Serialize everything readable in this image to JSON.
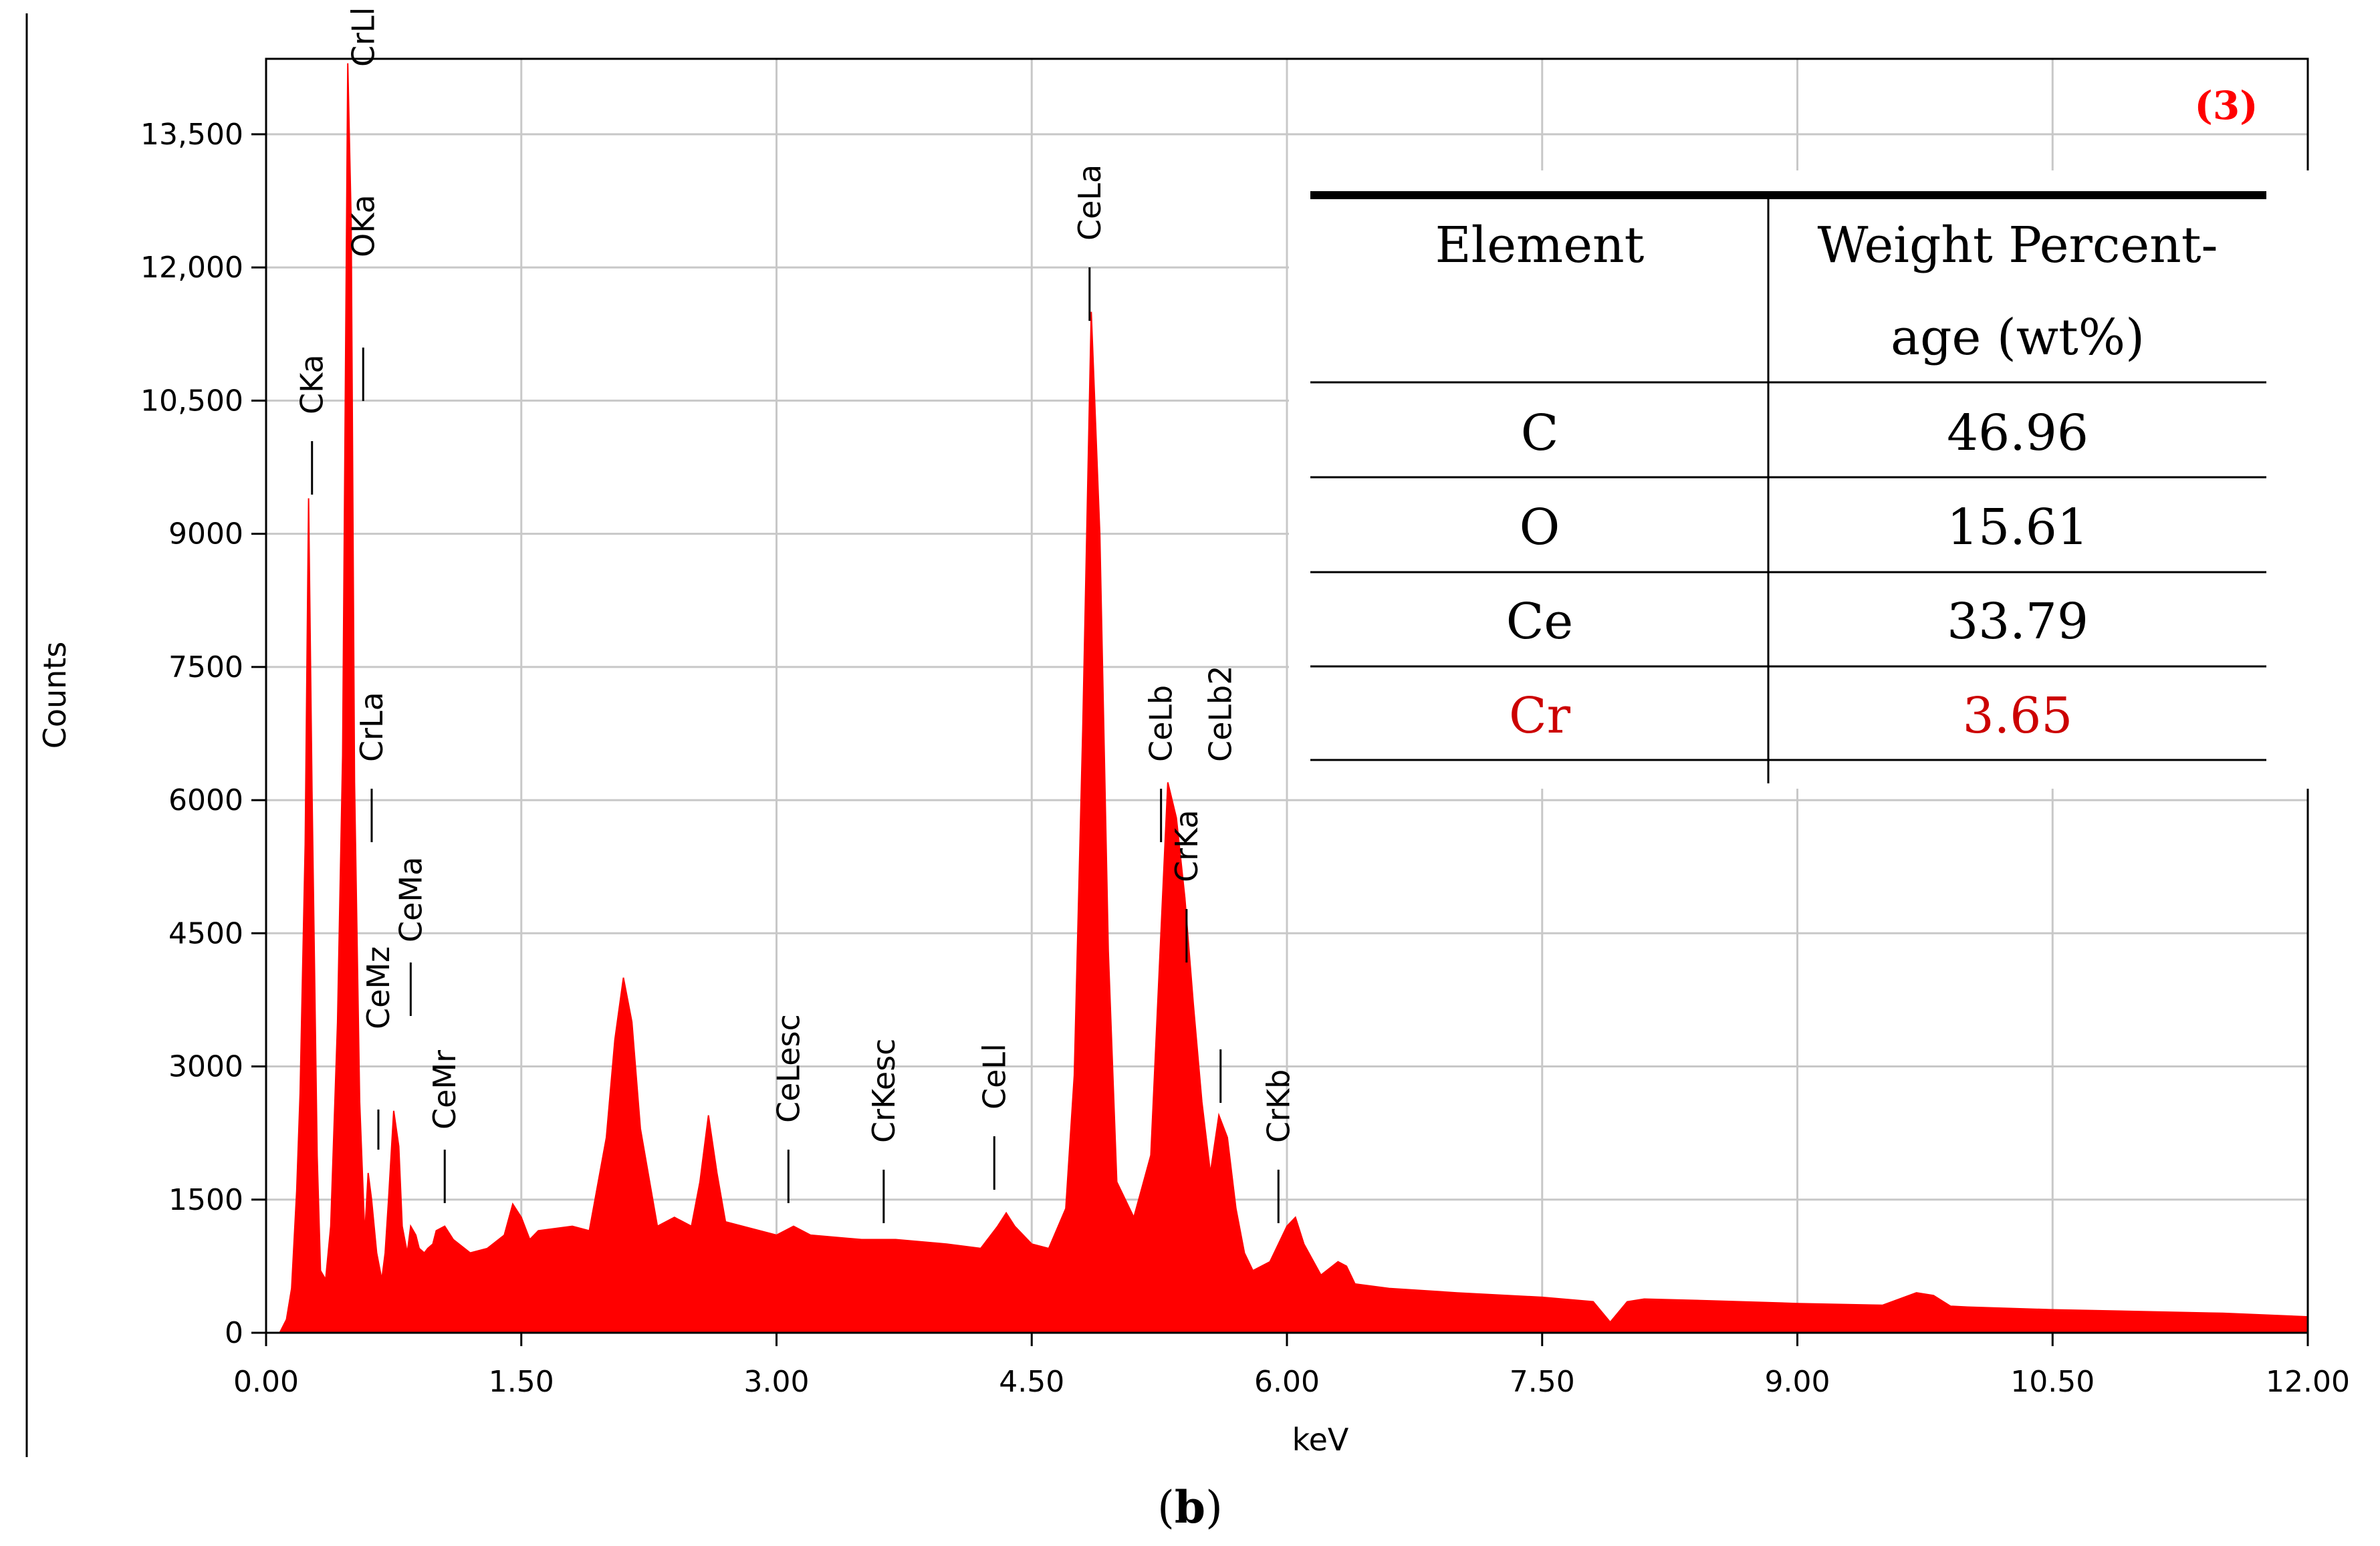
{
  "panel_tag": "(3)",
  "caption": {
    "open": "(",
    "letter": "b",
    "close": ")"
  },
  "colors": {
    "spectrum": "#ff0000",
    "grid": "#c8c8c8",
    "accent_text": "#ff0000",
    "table_red": "#cc0000",
    "ink": "#000000"
  },
  "chart_data": {
    "type": "area",
    "xlabel": "keV",
    "ylabel": "Counts",
    "xlim": [
      0,
      12
    ],
    "ylim": [
      0,
      14350
    ],
    "x_ticks": [
      0,
      1.5,
      3,
      4.5,
      6,
      7.5,
      9,
      10.5,
      12
    ],
    "x_tick_labels": [
      "0.00",
      "1.50",
      "3.00",
      "4.50",
      "6.00",
      "7.50",
      "9.00",
      "10.50",
      "12.00"
    ],
    "y_ticks": [
      0,
      1500,
      3000,
      4500,
      6000,
      7500,
      9000,
      10500,
      12000,
      13500
    ],
    "y_tick_labels": [
      "0",
      "1500",
      "3000",
      "4500",
      "6000",
      "7500",
      "9000",
      "10,500",
      "12,000",
      "13,500"
    ],
    "grid": true,
    "spectrum": {
      "x": [
        0.0,
        0.08,
        0.12,
        0.15,
        0.18,
        0.2,
        0.23,
        0.25,
        0.27,
        0.3,
        0.32,
        0.35,
        0.38,
        0.42,
        0.45,
        0.48,
        0.5,
        0.52,
        0.55,
        0.58,
        0.6,
        0.62,
        0.65,
        0.68,
        0.7,
        0.72,
        0.75,
        0.78,
        0.8,
        0.83,
        0.85,
        0.88,
        0.9,
        0.93,
        0.95,
        0.98,
        1.0,
        1.05,
        1.1,
        1.2,
        1.3,
        1.4,
        1.45,
        1.5,
        1.55,
        1.6,
        1.8,
        1.9,
        2.0,
        2.05,
        2.1,
        2.15,
        2.2,
        2.3,
        2.4,
        2.5,
        2.55,
        2.6,
        2.65,
        2.7,
        2.8,
        3.0,
        3.1,
        3.2,
        3.5,
        3.7,
        4.0,
        4.2,
        4.3,
        4.35,
        4.4,
        4.5,
        4.6,
        4.7,
        4.75,
        4.8,
        4.85,
        4.9,
        4.95,
        5.0,
        5.1,
        5.2,
        5.3,
        5.35,
        5.4,
        5.45,
        5.5,
        5.55,
        5.6,
        5.65,
        5.7,
        5.75,
        5.8,
        5.9,
        6.0,
        6.05,
        6.1,
        6.2,
        6.3,
        6.35,
        6.4,
        6.6,
        7.0,
        7.5,
        7.8,
        7.9,
        8.0,
        8.1,
        8.5,
        9.0,
        9.5,
        9.7,
        9.8,
        9.9,
        10.0,
        10.5,
        11.0,
        11.5,
        12.0
      ],
      "y": [
        0,
        0,
        150,
        500,
        1600,
        2700,
        5500,
        9400,
        6100,
        2000,
        700,
        600,
        1200,
        3500,
        6500,
        14300,
        12500,
        6200,
        2600,
        1100,
        1800,
        1500,
        900,
        600,
        900,
        1500,
        2500,
        2100,
        1200,
        900,
        1200,
        1100,
        950,
        900,
        950,
        1000,
        1150,
        1200,
        1050,
        900,
        950,
        1100,
        1450,
        1300,
        1050,
        1150,
        1200,
        1150,
        2200,
        3300,
        4000,
        3500,
        2300,
        1200,
        1300,
        1200,
        1700,
        2450,
        1800,
        1250,
        1200,
        1100,
        1200,
        1100,
        1050,
        1050,
        1000,
        950,
        1200,
        1350,
        1200,
        1000,
        950,
        1400,
        2900,
        6800,
        11500,
        9000,
        4300,
        1700,
        1300,
        2000,
        6200,
        5800,
        4900,
        3700,
        2600,
        1800,
        2450,
        2200,
        1400,
        900,
        700,
        800,
        1200,
        1300,
        1000,
        650,
        800,
        750,
        550,
        500,
        450,
        400,
        350,
        120,
        350,
        380,
        360,
        330,
        310,
        450,
        420,
        300,
        290,
        260,
        240,
        220,
        180
      ]
    },
    "peak_labels": [
      {
        "text": "CKa",
        "x": 0.27
      },
      {
        "text": "OKa",
        "x": 0.5
      },
      {
        "text": "CrLl",
        "x": 0.5
      },
      {
        "text": "CrLa",
        "x": 0.55
      },
      {
        "text": "CeMz",
        "x": 0.66
      },
      {
        "text": "CeMa",
        "x": 0.85
      },
      {
        "text": "CeMr",
        "x": 1.05
      },
      {
        "text": "CeLesc",
        "x": 3.07
      },
      {
        "text": "CrKesc",
        "x": 3.63
      },
      {
        "text": "CeLl",
        "x": 4.28
      },
      {
        "text": "CeLa",
        "x": 4.84
      },
      {
        "text": "CeLb",
        "x": 5.26
      },
      {
        "text": "CrKa",
        "x": 5.41
      },
      {
        "text": "CeLb2",
        "x": 5.61
      },
      {
        "text": "CrKb",
        "x": 5.95
      }
    ]
  },
  "table": {
    "headers": [
      "Element",
      "Weight Percent-",
      "age (wt%)"
    ],
    "rows": [
      {
        "element": "C",
        "wt": "46.96"
      },
      {
        "element": "O",
        "wt": "15.61"
      },
      {
        "element": "Ce",
        "wt": "33.79"
      },
      {
        "element": "Cr",
        "wt": "3.65"
      }
    ]
  }
}
